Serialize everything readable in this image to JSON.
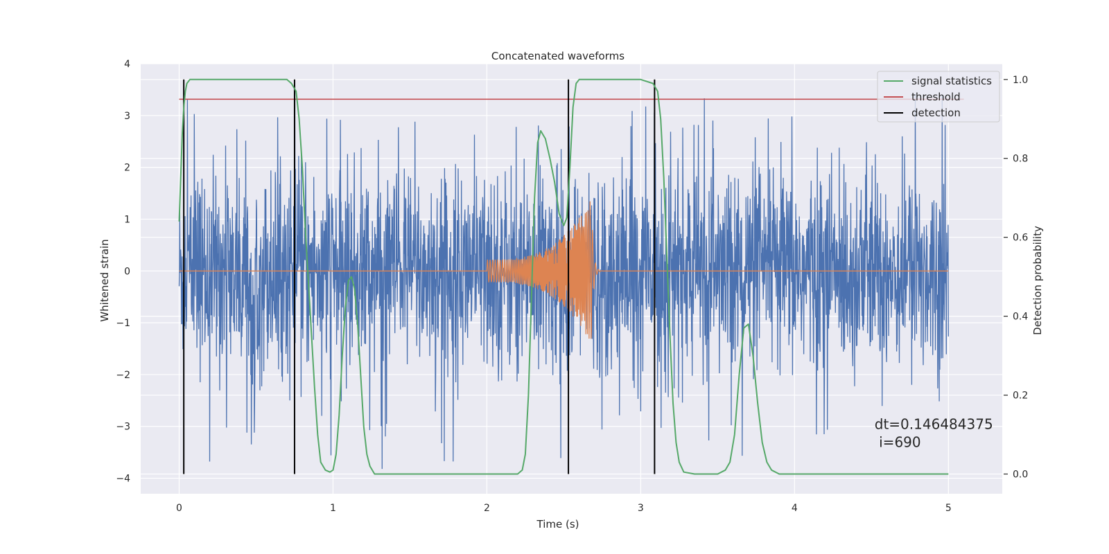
{
  "chart_data": {
    "type": "line",
    "title": "Concatenated waveforms",
    "xlabel": "Time (s)",
    "ylabel": "Whitened strain",
    "y2label": "Detection probability",
    "xlim": [
      -0.25,
      5.35
    ],
    "ylim": [
      -4.3,
      4.0
    ],
    "y2lim": [
      -0.05,
      1.04
    ],
    "x_ticks": [
      0,
      1,
      2,
      3,
      4,
      5
    ],
    "x_tick_labels": [
      "0",
      "1",
      "2",
      "3",
      "4",
      "5"
    ],
    "y_ticks": [
      -4,
      -3,
      -2,
      -1,
      0,
      1,
      2,
      3,
      4
    ],
    "y_tick_labels": [
      "−4",
      "−3",
      "−2",
      "−1",
      "0",
      "1",
      "2",
      "3",
      "4"
    ],
    "y2_ticks": [
      0.0,
      0.2,
      0.4,
      0.6,
      0.8,
      1.0
    ],
    "y2_tick_labels": [
      "0.0",
      "0.2",
      "0.4",
      "0.6",
      "0.8",
      "1.0"
    ],
    "grid": true,
    "legend_position": "top-right",
    "series": [
      {
        "name": "",
        "axis": "left",
        "color": "#4c72b0",
        "kind": "noise",
        "x_range": [
          0,
          5
        ],
        "typical_amplitude": 2.0,
        "extreme_min": -3.9,
        "extreme_max": 3.5
      },
      {
        "name": "",
        "axis": "left",
        "color": "#dd8452",
        "kind": "chirp",
        "flat_value": 0,
        "chirp_start": 2.0,
        "chirp_peak": 2.68,
        "ringdown_end": 2.75,
        "amplitude_start": 0.22,
        "amplitude_peak": 1.4
      },
      {
        "name": "signal statistics",
        "axis": "right",
        "color": "#55a868",
        "x": [
          0,
          0.01,
          0.02,
          0.03,
          0.04,
          0.05,
          0.07,
          0.1,
          0.2,
          0.5,
          0.7,
          0.73,
          0.76,
          0.78,
          0.8,
          0.82,
          0.85,
          0.88,
          0.9,
          0.92,
          0.95,
          0.98,
          1.0,
          1.02,
          1.04,
          1.06,
          1.08,
          1.1,
          1.12,
          1.14,
          1.16,
          1.18,
          1.2,
          1.22,
          1.24,
          1.27,
          1.3,
          1.5,
          2.0,
          2.2,
          2.23,
          2.25,
          2.27,
          2.29,
          2.31,
          2.33,
          2.35,
          2.38,
          2.41,
          2.44,
          2.47,
          2.5,
          2.52,
          2.54,
          2.56,
          2.58,
          2.6,
          2.65,
          2.8,
          3.0,
          3.08,
          3.11,
          3.13,
          3.15,
          3.17,
          3.19,
          3.21,
          3.23,
          3.25,
          3.28,
          3.35,
          3.5,
          3.55,
          3.58,
          3.61,
          3.64,
          3.67,
          3.7,
          3.73,
          3.76,
          3.79,
          3.82,
          3.85,
          3.9,
          4.5,
          5.0
        ],
        "values": [
          0.64,
          0.75,
          0.86,
          0.93,
          0.97,
          0.99,
          1.0,
          1.0,
          1.0,
          1.0,
          1.0,
          0.99,
          0.97,
          0.9,
          0.78,
          0.62,
          0.42,
          0.22,
          0.1,
          0.03,
          0.01,
          0.005,
          0.01,
          0.05,
          0.15,
          0.3,
          0.42,
          0.49,
          0.5,
          0.47,
          0.38,
          0.25,
          0.12,
          0.05,
          0.02,
          0.0,
          0.0,
          0.0,
          0.0,
          0.0,
          0.01,
          0.05,
          0.2,
          0.45,
          0.7,
          0.84,
          0.87,
          0.85,
          0.8,
          0.74,
          0.66,
          0.63,
          0.65,
          0.78,
          0.93,
          0.99,
          1.0,
          1.0,
          1.0,
          1.0,
          0.99,
          0.97,
          0.9,
          0.75,
          0.55,
          0.35,
          0.18,
          0.08,
          0.03,
          0.005,
          0.0,
          0.0,
          0.01,
          0.03,
          0.1,
          0.25,
          0.37,
          0.38,
          0.3,
          0.18,
          0.08,
          0.03,
          0.01,
          0.0,
          0.0,
          0.0
        ]
      },
      {
        "name": "threshold",
        "axis": "right",
        "color": "#c44e52",
        "x": [
          0,
          5.1
        ],
        "values": [
          0.95,
          0.95
        ]
      },
      {
        "name": "detection",
        "axis": "right",
        "color": "#000000",
        "kind": "vlines",
        "x": [
          0.03,
          0.75,
          2.53,
          3.09
        ],
        "y_range": [
          0.0,
          1.0
        ]
      }
    ],
    "annotations": [
      {
        "text": "dt=0.146484375",
        "x": 4.52,
        "y": -3.05
      },
      {
        "text": " i=690",
        "x": 4.52,
        "y": -3.4
      }
    ]
  }
}
